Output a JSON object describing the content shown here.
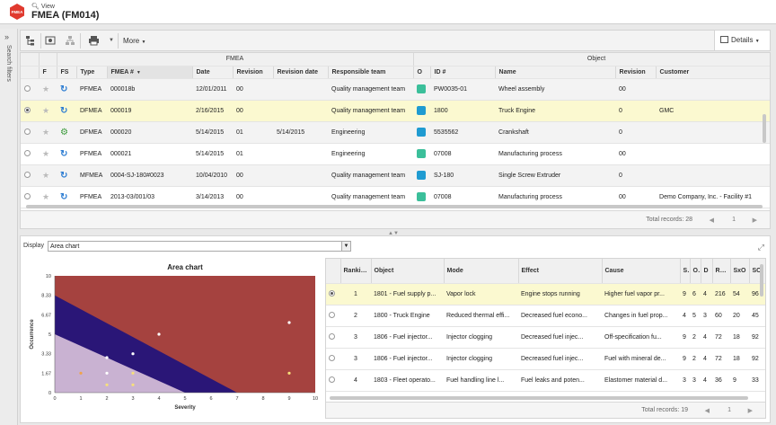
{
  "header": {
    "breadcrumb": "View",
    "title": "FMEA (FM014)",
    "logo_text": "FMEA"
  },
  "sidebar": {
    "label": "Search filters"
  },
  "toolbar": {
    "more_label": "More",
    "details_label": "Details"
  },
  "grid": {
    "group_fmea": "FMEA",
    "group_object": "Object",
    "columns": [
      "F",
      "FS",
      "Type",
      "FMEA #",
      "Date",
      "Revision",
      "Revision date",
      "Responsible team",
      "O",
      "ID #",
      "Name",
      "Revision",
      "Customer"
    ],
    "rows": [
      {
        "selected": false,
        "status": "sync",
        "type": "PFMEA",
        "fmea": "000018b",
        "date": "12/01/2011",
        "revision": "00",
        "revision_date": "",
        "team": "Quality management team",
        "obj_color": "#3bbf9a",
        "id": "PW0035-01",
        "name": "Wheel assembly",
        "obj_revision": "00",
        "customer": ""
      },
      {
        "selected": true,
        "status": "sync",
        "type": "DFMEA",
        "fmea": "000019",
        "date": "2/16/2015",
        "revision": "00",
        "revision_date": "",
        "team": "Quality management team",
        "obj_color": "#1f9bd1",
        "id": "1800",
        "name": "Truck Engine",
        "obj_revision": "0",
        "customer": "GMC"
      },
      {
        "selected": false,
        "status": "gear",
        "type": "DFMEA",
        "fmea": "000020",
        "date": "5/14/2015",
        "revision": "01",
        "revision_date": "5/14/2015",
        "team": "Engineering",
        "obj_color": "#1f9bd1",
        "id": "5535562",
        "name": "Crankshaft",
        "obj_revision": "0",
        "customer": ""
      },
      {
        "selected": false,
        "status": "sync",
        "type": "PFMEA",
        "fmea": "000021",
        "date": "5/14/2015",
        "revision": "01",
        "revision_date": "",
        "team": "Engineering",
        "obj_color": "#3bbf9a",
        "id": "07008",
        "name": "Manufacturing process",
        "obj_revision": "00",
        "customer": ""
      },
      {
        "selected": false,
        "status": "sync",
        "type": "MFMEA",
        "fmea": "0004-SJ-180#0023",
        "date": "10/04/2010",
        "revision": "00",
        "revision_date": "",
        "team": "Quality management team",
        "obj_color": "#1f9bd1",
        "id": "SJ-180",
        "name": "Single Screw Extruder",
        "obj_revision": "0",
        "customer": ""
      },
      {
        "selected": false,
        "status": "sync",
        "type": "PFMEA",
        "fmea": "2013-03/001/03",
        "date": "3/14/2013",
        "revision": "00",
        "revision_date": "",
        "team": "Quality management team",
        "obj_color": "#3bbf9a",
        "id": "07008",
        "name": "Manufacturing process",
        "obj_revision": "00",
        "customer": "Demo Company, Inc. - Facility #1"
      }
    ],
    "total_records": "Total records: 28",
    "pager_page": "1"
  },
  "display": {
    "label": "Display",
    "selected": "Area chart"
  },
  "chart_data": {
    "type": "area",
    "title": "Area chart",
    "xlabel": "Severity",
    "ylabel": "Occurrence",
    "xlim": [
      0,
      10
    ],
    "ylim": [
      0,
      10
    ],
    "xticks": [
      "0",
      "1",
      "2",
      "3",
      "4",
      "5",
      "6",
      "7",
      "8",
      "9",
      "10"
    ],
    "yticks": [
      "0",
      "1.67",
      "3.33",
      "5",
      "6.67",
      "8.33",
      "10"
    ],
    "regions": [
      {
        "name": "high",
        "color": "#a5423f",
        "points": [
          [
            0,
            10
          ],
          [
            10,
            10
          ],
          [
            10,
            0
          ],
          [
            0,
            0
          ]
        ]
      },
      {
        "name": "medium",
        "color": "#2a1677",
        "points": [
          [
            0,
            8.33
          ],
          [
            7,
            0
          ],
          [
            0,
            0
          ]
        ]
      },
      {
        "name": "low",
        "color": "#c9b2d2",
        "points": [
          [
            0,
            5
          ],
          [
            5,
            0
          ],
          [
            0,
            0
          ]
        ]
      }
    ],
    "points": [
      {
        "x": 1,
        "y": 1.67,
        "color": "#f0a34a"
      },
      {
        "x": 2,
        "y": 1.67,
        "color": "#ffffff"
      },
      {
        "x": 2,
        "y": 0.67,
        "color": "#f7e07a"
      },
      {
        "x": 2,
        "y": 3,
        "color": "#ffffff"
      },
      {
        "x": 3,
        "y": 3.33,
        "color": "#ffffff"
      },
      {
        "x": 3,
        "y": 1.67,
        "color": "#f7e07a"
      },
      {
        "x": 3,
        "y": 0.67,
        "color": "#f7e07a"
      },
      {
        "x": 4,
        "y": 5,
        "color": "#ffffff"
      },
      {
        "x": 9,
        "y": 6,
        "color": "#ffffff"
      },
      {
        "x": 9,
        "y": 1.67,
        "color": "#f7e07a"
      }
    ]
  },
  "ranking": {
    "columns": [
      "Ranking",
      "Object",
      "Mode",
      "Effect",
      "Cause",
      "S",
      "O",
      "D",
      "RPN",
      "SxO",
      "SO"
    ],
    "rows": [
      {
        "selected": true,
        "rank": "1",
        "object": "1801 - Fuel supply p...",
        "mode": "Vapor lock",
        "effect": "Engine stops running",
        "cause": "Higher fuel vapor pr...",
        "s": "9",
        "o": "6",
        "d": "4",
        "rpn": "216",
        "sxo": "54",
        "so": "96"
      },
      {
        "selected": false,
        "rank": "2",
        "object": "1800 - Truck Engine",
        "mode": "Reduced thermal effi...",
        "effect": "Decreased fuel econo...",
        "cause": "Changes in fuel prop...",
        "s": "4",
        "o": "5",
        "d": "3",
        "rpn": "60",
        "sxo": "20",
        "so": "45"
      },
      {
        "selected": false,
        "rank": "3",
        "object": "1806 - Fuel injector...",
        "mode": "Injector clogging",
        "effect": "Decreased fuel injec...",
        "cause": "Off-specification fu...",
        "s": "9",
        "o": "2",
        "d": "4",
        "rpn": "72",
        "sxo": "18",
        "so": "92"
      },
      {
        "selected": false,
        "rank": "3",
        "object": "1806 - Fuel injector...",
        "mode": "Injector clogging",
        "effect": "Decreased fuel injec...",
        "cause": "Fuel with mineral de...",
        "s": "9",
        "o": "2",
        "d": "4",
        "rpn": "72",
        "sxo": "18",
        "so": "92"
      },
      {
        "selected": false,
        "rank": "4",
        "object": "1803 - Fleet operato...",
        "mode": "Fuel handling line l...",
        "effect": "Fuel leaks and poten...",
        "cause": "Elastomer material d...",
        "s": "3",
        "o": "3",
        "d": "4",
        "rpn": "36",
        "sxo": "9",
        "so": "33"
      }
    ],
    "total_records": "Total records: 19",
    "pager_page": "1"
  }
}
